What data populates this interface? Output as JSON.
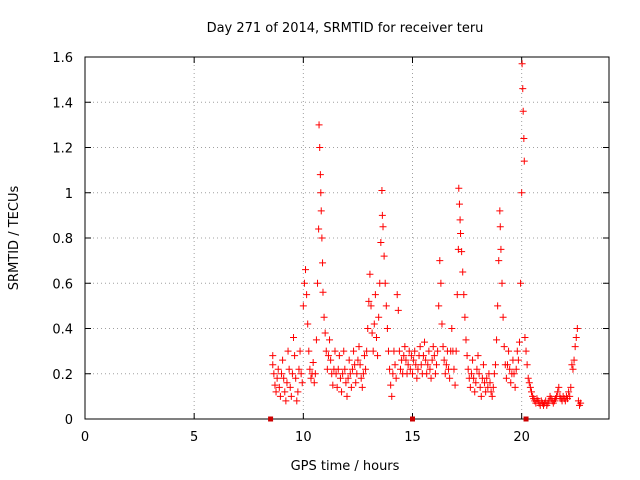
{
  "chart_data": {
    "type": "scatter",
    "title": "Day 271 of 2014, SRMTID for receiver teru",
    "xlabel": "GPS time / hours",
    "ylabel": "SRMTID / TECUs",
    "xlim": [
      0,
      24
    ],
    "ylim": [
      0,
      1.6
    ],
    "x_ticks": [
      0,
      5,
      10,
      15,
      20
    ],
    "x_tick_labels": [
      "0",
      "5",
      "10",
      "15",
      "20"
    ],
    "y_ticks": [
      0,
      0.2,
      0.4,
      0.6,
      0.8,
      1.0,
      1.2,
      1.4,
      1.6
    ],
    "y_tick_labels": [
      "0",
      "0.2",
      "0.4",
      "0.6",
      "0.8",
      "1",
      "1.2",
      "1.4",
      "1.6"
    ],
    "grid": true,
    "marker": "+",
    "color": "#ff0000",
    "baseline_markers_x": [
      8.5,
      15.0,
      20.2
    ],
    "series": [
      {
        "name": "SRMTID",
        "points": [
          [
            8.6,
            0.28
          ],
          [
            8.6,
            0.24
          ],
          [
            8.65,
            0.2
          ],
          [
            8.7,
            0.15
          ],
          [
            8.75,
            0.12
          ],
          [
            8.8,
            0.18
          ],
          [
            8.85,
            0.22
          ],
          [
            8.9,
            0.14
          ],
          [
            8.95,
            0.1
          ],
          [
            9.0,
            0.2
          ],
          [
            9.05,
            0.26
          ],
          [
            9.1,
            0.18
          ],
          [
            9.15,
            0.12
          ],
          [
            9.2,
            0.08
          ],
          [
            9.25,
            0.16
          ],
          [
            9.3,
            0.3
          ],
          [
            9.35,
            0.22
          ],
          [
            9.4,
            0.14
          ],
          [
            9.45,
            0.1
          ],
          [
            9.5,
            0.2
          ],
          [
            9.55,
            0.36
          ],
          [
            9.6,
            0.28
          ],
          [
            9.65,
            0.18
          ],
          [
            9.7,
            0.08
          ],
          [
            9.75,
            0.12
          ],
          [
            9.8,
            0.22
          ],
          [
            9.85,
            0.3
          ],
          [
            9.9,
            0.2
          ],
          [
            9.95,
            0.16
          ],
          [
            10.0,
            0.5
          ],
          [
            10.05,
            0.6
          ],
          [
            10.1,
            0.66
          ],
          [
            10.15,
            0.55
          ],
          [
            10.2,
            0.42
          ],
          [
            10.25,
            0.3
          ],
          [
            10.3,
            0.22
          ],
          [
            10.35,
            0.18
          ],
          [
            10.4,
            0.2
          ],
          [
            10.45,
            0.25
          ],
          [
            10.5,
            0.16
          ],
          [
            10.55,
            0.2
          ],
          [
            10.6,
            0.35
          ],
          [
            10.65,
            0.6
          ],
          [
            10.7,
            0.84
          ],
          [
            10.72,
            1.3
          ],
          [
            10.75,
            1.2
          ],
          [
            10.78,
            1.08
          ],
          [
            10.8,
            1.0
          ],
          [
            10.82,
            0.92
          ],
          [
            10.85,
            0.8
          ],
          [
            10.88,
            0.69
          ],
          [
            10.9,
            0.56
          ],
          [
            10.95,
            0.45
          ],
          [
            11.0,
            0.38
          ],
          [
            11.05,
            0.3
          ],
          [
            11.1,
            0.22
          ],
          [
            11.15,
            0.28
          ],
          [
            11.2,
            0.35
          ],
          [
            11.25,
            0.26
          ],
          [
            11.3,
            0.2
          ],
          [
            11.35,
            0.15
          ],
          [
            11.4,
            0.22
          ],
          [
            11.45,
            0.3
          ],
          [
            11.5,
            0.2
          ],
          [
            11.55,
            0.14
          ],
          [
            11.6,
            0.22
          ],
          [
            11.65,
            0.28
          ],
          [
            11.7,
            0.18
          ],
          [
            11.75,
            0.12
          ],
          [
            11.8,
            0.2
          ],
          [
            11.85,
            0.3
          ],
          [
            11.9,
            0.22
          ],
          [
            11.95,
            0.16
          ],
          [
            12.0,
            0.1
          ],
          [
            12.05,
            0.18
          ],
          [
            12.1,
            0.26
          ],
          [
            12.15,
            0.2
          ],
          [
            12.2,
            0.14
          ],
          [
            12.25,
            0.22
          ],
          [
            12.3,
            0.3
          ],
          [
            12.35,
            0.24
          ],
          [
            12.4,
            0.16
          ],
          [
            12.45,
            0.2
          ],
          [
            12.5,
            0.26
          ],
          [
            12.55,
            0.32
          ],
          [
            12.6,
            0.24
          ],
          [
            12.65,
            0.18
          ],
          [
            12.7,
            0.14
          ],
          [
            12.75,
            0.2
          ],
          [
            12.8,
            0.28
          ],
          [
            12.85,
            0.22
          ],
          [
            12.9,
            0.3
          ],
          [
            12.95,
            0.4
          ],
          [
            13.0,
            0.52
          ],
          [
            13.05,
            0.64
          ],
          [
            13.1,
            0.5
          ],
          [
            13.15,
            0.38
          ],
          [
            13.2,
            0.3
          ],
          [
            13.25,
            0.42
          ],
          [
            13.3,
            0.55
          ],
          [
            13.35,
            0.36
          ],
          [
            13.4,
            0.28
          ],
          [
            13.45,
            0.45
          ],
          [
            13.5,
            0.6
          ],
          [
            13.55,
            0.78
          ],
          [
            13.6,
            1.01
          ],
          [
            13.62,
            0.9
          ],
          [
            13.65,
            0.85
          ],
          [
            13.7,
            0.72
          ],
          [
            13.75,
            0.6
          ],
          [
            13.8,
            0.5
          ],
          [
            13.85,
            0.4
          ],
          [
            13.9,
            0.3
          ],
          [
            13.95,
            0.22
          ],
          [
            14.0,
            0.15
          ],
          [
            14.05,
            0.1
          ],
          [
            14.1,
            0.2
          ],
          [
            14.15,
            0.3
          ],
          [
            14.2,
            0.24
          ],
          [
            14.25,
            0.18
          ],
          [
            14.3,
            0.55
          ],
          [
            14.35,
            0.48
          ],
          [
            14.4,
            0.3
          ],
          [
            14.45,
            0.22
          ],
          [
            14.5,
            0.26
          ],
          [
            14.55,
            0.2
          ],
          [
            14.6,
            0.28
          ],
          [
            14.65,
            0.32
          ],
          [
            14.7,
            0.26
          ],
          [
            14.75,
            0.2
          ],
          [
            14.8,
            0.24
          ],
          [
            14.85,
            0.3
          ],
          [
            14.9,
            0.22
          ],
          [
            14.95,
            0.28
          ],
          [
            15.0,
            0.2
          ],
          [
            15.05,
            0.26
          ],
          [
            15.1,
            0.3
          ],
          [
            15.15,
            0.24
          ],
          [
            15.2,
            0.18
          ],
          [
            15.25,
            0.22
          ],
          [
            15.3,
            0.28
          ],
          [
            15.35,
            0.32
          ],
          [
            15.4,
            0.24
          ],
          [
            15.45,
            0.2
          ],
          [
            15.5,
            0.28
          ],
          [
            15.55,
            0.34
          ],
          [
            15.6,
            0.26
          ],
          [
            15.65,
            0.2
          ],
          [
            15.7,
            0.24
          ],
          [
            15.75,
            0.3
          ],
          [
            15.8,
            0.22
          ],
          [
            15.85,
            0.18
          ],
          [
            15.9,
            0.26
          ],
          [
            15.95,
            0.32
          ],
          [
            16.0,
            0.28
          ],
          [
            16.05,
            0.2
          ],
          [
            16.1,
            0.24
          ],
          [
            16.15,
            0.3
          ],
          [
            16.2,
            0.5
          ],
          [
            16.25,
            0.7
          ],
          [
            16.3,
            0.6
          ],
          [
            16.35,
            0.42
          ],
          [
            16.4,
            0.32
          ],
          [
            16.45,
            0.26
          ],
          [
            16.5,
            0.2
          ],
          [
            16.55,
            0.24
          ],
          [
            16.6,
            0.3
          ],
          [
            16.65,
            0.22
          ],
          [
            16.7,
            0.18
          ],
          [
            16.75,
            0.3
          ],
          [
            16.8,
            0.4
          ],
          [
            16.85,
            0.3
          ],
          [
            16.9,
            0.22
          ],
          [
            16.95,
            0.15
          ],
          [
            17.0,
            0.3
          ],
          [
            17.05,
            0.55
          ],
          [
            17.1,
            0.75
          ],
          [
            17.12,
            1.02
          ],
          [
            17.15,
            0.95
          ],
          [
            17.18,
            0.88
          ],
          [
            17.2,
            0.82
          ],
          [
            17.25,
            0.74
          ],
          [
            17.3,
            0.65
          ],
          [
            17.35,
            0.55
          ],
          [
            17.4,
            0.45
          ],
          [
            17.45,
            0.35
          ],
          [
            17.5,
            0.28
          ],
          [
            17.55,
            0.22
          ],
          [
            17.6,
            0.18
          ],
          [
            17.65,
            0.14
          ],
          [
            17.7,
            0.2
          ],
          [
            17.75,
            0.26
          ],
          [
            17.8,
            0.18
          ],
          [
            17.85,
            0.12
          ],
          [
            17.9,
            0.16
          ],
          [
            17.95,
            0.22
          ],
          [
            18.0,
            0.28
          ],
          [
            18.05,
            0.2
          ],
          [
            18.1,
            0.14
          ],
          [
            18.15,
            0.1
          ],
          [
            18.2,
            0.18
          ],
          [
            18.25,
            0.24
          ],
          [
            18.3,
            0.16
          ],
          [
            18.35,
            0.12
          ],
          [
            18.4,
            0.18
          ],
          [
            18.45,
            0.14
          ],
          [
            18.5,
            0.2
          ],
          [
            18.55,
            0.16
          ],
          [
            18.6,
            0.12
          ],
          [
            18.65,
            0.1
          ],
          [
            18.7,
            0.14
          ],
          [
            18.75,
            0.2
          ],
          [
            18.8,
            0.24
          ],
          [
            18.85,
            0.35
          ],
          [
            18.9,
            0.5
          ],
          [
            18.95,
            0.7
          ],
          [
            19.0,
            0.92
          ],
          [
            19.02,
            0.85
          ],
          [
            19.05,
            0.75
          ],
          [
            19.1,
            0.6
          ],
          [
            19.15,
            0.45
          ],
          [
            19.2,
            0.32
          ],
          [
            19.25,
            0.24
          ],
          [
            19.3,
            0.18
          ],
          [
            19.35,
            0.24
          ],
          [
            19.4,
            0.3
          ],
          [
            19.45,
            0.22
          ],
          [
            19.5,
            0.16
          ],
          [
            19.55,
            0.2
          ],
          [
            19.6,
            0.26
          ],
          [
            19.65,
            0.2
          ],
          [
            19.7,
            0.14
          ],
          [
            19.75,
            0.22
          ],
          [
            19.8,
            0.3
          ],
          [
            19.85,
            0.26
          ],
          [
            19.9,
            0.34
          ],
          [
            19.95,
            0.6
          ],
          [
            20.0,
            1.0
          ],
          [
            20.02,
            1.57
          ],
          [
            20.05,
            1.46
          ],
          [
            20.07,
            1.36
          ],
          [
            20.1,
            1.24
          ],
          [
            20.12,
            1.14
          ],
          [
            20.15,
            0.36
          ],
          [
            20.2,
            0.3
          ],
          [
            20.25,
            0.24
          ],
          [
            20.3,
            0.18
          ],
          [
            20.35,
            0.16
          ],
          [
            20.4,
            0.14
          ],
          [
            20.45,
            0.12
          ],
          [
            20.5,
            0.1
          ],
          [
            20.55,
            0.09
          ],
          [
            20.6,
            0.08
          ],
          [
            20.65,
            0.07
          ],
          [
            20.7,
            0.09
          ],
          [
            20.75,
            0.08
          ],
          [
            20.8,
            0.07
          ],
          [
            20.85,
            0.06
          ],
          [
            20.9,
            0.08
          ],
          [
            20.95,
            0.07
          ],
          [
            21.0,
            0.06
          ],
          [
            21.05,
            0.07
          ],
          [
            21.1,
            0.08
          ],
          [
            21.15,
            0.06
          ],
          [
            21.2,
            0.07
          ],
          [
            21.25,
            0.08
          ],
          [
            21.3,
            0.1
          ],
          [
            21.35,
            0.09
          ],
          [
            21.4,
            0.08
          ],
          [
            21.45,
            0.07
          ],
          [
            21.5,
            0.08
          ],
          [
            21.55,
            0.09
          ],
          [
            21.6,
            0.1
          ],
          [
            21.65,
            0.12
          ],
          [
            21.7,
            0.14
          ],
          [
            21.75,
            0.1
          ],
          [
            21.8,
            0.09
          ],
          [
            21.85,
            0.08
          ],
          [
            21.9,
            0.1
          ],
          [
            21.95,
            0.09
          ],
          [
            22.0,
            0.08
          ],
          [
            22.05,
            0.1
          ],
          [
            22.1,
            0.09
          ],
          [
            22.15,
            0.12
          ],
          [
            22.2,
            0.1
          ],
          [
            22.25,
            0.14
          ],
          [
            22.3,
            0.24
          ],
          [
            22.35,
            0.22
          ],
          [
            22.4,
            0.26
          ],
          [
            22.45,
            0.32
          ],
          [
            22.5,
            0.36
          ],
          [
            22.55,
            0.4
          ],
          [
            22.6,
            0.08
          ],
          [
            22.65,
            0.06
          ],
          [
            22.7,
            0.07
          ]
        ]
      }
    ]
  }
}
